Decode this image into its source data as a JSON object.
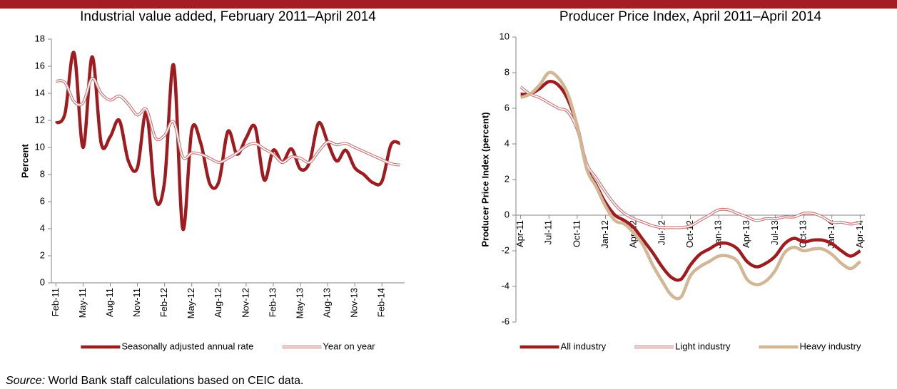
{
  "chart_data": [
    {
      "type": "line",
      "title": "Industrial value added, February 2011–April 2014",
      "y_label": "Percent",
      "categories": [
        "Feb-11",
        null,
        null,
        "May-11",
        null,
        null,
        "Aug-11",
        null,
        null,
        "Nov-11",
        null,
        null,
        "Feb-12",
        null,
        null,
        "May-12",
        null,
        null,
        "Aug-12",
        null,
        null,
        "Nov-12",
        null,
        null,
        "Feb-13",
        null,
        null,
        "May-13",
        null,
        null,
        "Aug-13",
        null,
        null,
        "Nov-13",
        null,
        null,
        "Feb-14",
        null,
        null
      ],
      "series": [
        {
          "name": "Seasonally adjusted annual rate",
          "color": "#9e1b20",
          "line_style": "solid",
          "values": [
            11.8,
            12.5,
            17.0,
            10.0,
            16.7,
            10.3,
            10.8,
            12.0,
            9.0,
            8.5,
            12.6,
            6.2,
            7.5,
            16.1,
            4.0,
            11.3,
            10.3,
            7.3,
            7.5,
            11.2,
            9.5,
            10.7,
            11.5,
            7.6,
            9.8,
            8.9,
            9.9,
            8.4,
            8.9,
            11.8,
            10.4,
            9.0,
            9.8,
            8.5,
            8.0,
            7.4,
            7.5,
            10.2,
            10.3
          ]
        },
        {
          "name": "Year on year",
          "color": "#c87b7d",
          "line_style": "double",
          "values": [
            14.9,
            14.8,
            13.4,
            13.3,
            15.1,
            14.0,
            13.5,
            13.8,
            13.2,
            12.4,
            12.8,
            10.7,
            10.9,
            11.9,
            9.3,
            9.6,
            9.5,
            9.2,
            8.9,
            9.2,
            9.6,
            10.1,
            10.3,
            9.9,
            9.5,
            8.9,
            9.3,
            9.2,
            8.9,
            9.7,
            10.4,
            10.2,
            10.3,
            10.0,
            9.7,
            9.4,
            9.1,
            8.8,
            8.7
          ]
        }
      ],
      "ylim": [
        0,
        18
      ],
      "yticks": [
        0,
        2,
        4,
        6,
        8,
        10,
        12,
        14,
        16,
        18
      ],
      "legend": "bottom"
    },
    {
      "type": "line",
      "title": "Producer Price Index, April 2011–April 2014",
      "y_label": "Producer Price Index (percent)",
      "categories": [
        "Apr-11",
        null,
        null,
        "Jul-11",
        null,
        null,
        "Oct-11",
        null,
        null,
        "Jan-12",
        null,
        null,
        "Apr-12",
        null,
        null,
        "Jul-12",
        null,
        null,
        "Oct-12",
        null,
        null,
        "Jan-13",
        null,
        null,
        "Apr-13",
        null,
        null,
        "Jul-13",
        null,
        null,
        "Oct-13",
        null,
        null,
        "Jan-14",
        null,
        null,
        "Apr-14"
      ],
      "series": [
        {
          "name": "All industry",
          "color": "#9e1b20",
          "line_style": "solid",
          "values": [
            6.8,
            6.8,
            7.1,
            7.5,
            7.3,
            6.5,
            5.0,
            2.7,
            1.7,
            0.7,
            0.0,
            -0.3,
            -0.7,
            -1.4,
            -2.1,
            -2.9,
            -3.5,
            -3.6,
            -2.8,
            -2.2,
            -1.9,
            -1.6,
            -1.6,
            -1.9,
            -2.6,
            -2.9,
            -2.7,
            -2.3,
            -1.6,
            -1.3,
            -1.5,
            -1.4,
            -1.4,
            -1.6,
            -2.0,
            -2.3,
            -2.0
          ]
        },
        {
          "name": "Light industry",
          "color": "#c87b7d",
          "line_style": "double",
          "values": [
            7.2,
            6.8,
            6.6,
            6.3,
            6.0,
            5.8,
            4.8,
            2.9,
            2.1,
            1.3,
            0.6,
            0.1,
            -0.2,
            -0.4,
            -0.6,
            -0.7,
            -0.7,
            -0.7,
            -0.6,
            -0.3,
            0.0,
            0.3,
            0.3,
            0.1,
            -0.1,
            -0.3,
            -0.2,
            -0.2,
            -0.1,
            -0.1,
            0.1,
            0.1,
            -0.1,
            -0.4,
            -0.4,
            -0.5,
            -0.4
          ]
        },
        {
          "name": "Heavy industry",
          "color": "#d2b796",
          "line_style": "solid",
          "values": [
            6.6,
            6.8,
            7.3,
            8.0,
            7.7,
            6.8,
            5.0,
            2.6,
            1.6,
            0.5,
            -0.3,
            -0.5,
            -1.0,
            -1.7,
            -2.8,
            -3.7,
            -4.5,
            -4.6,
            -3.4,
            -2.9,
            -2.6,
            -2.3,
            -2.3,
            -2.6,
            -3.6,
            -3.9,
            -3.7,
            -3.1,
            -2.1,
            -1.8,
            -2.0,
            -1.9,
            -1.9,
            -2.2,
            -2.7,
            -3.0,
            -2.6
          ]
        }
      ],
      "ylim": [
        -6,
        10
      ],
      "yticks": [
        -6,
        -4,
        -2,
        0,
        2,
        4,
        6,
        8,
        10
      ],
      "legend": "bottom"
    }
  ],
  "source": {
    "label": "Source:",
    "text": "World Bank staff calculations based on CEIC data."
  }
}
